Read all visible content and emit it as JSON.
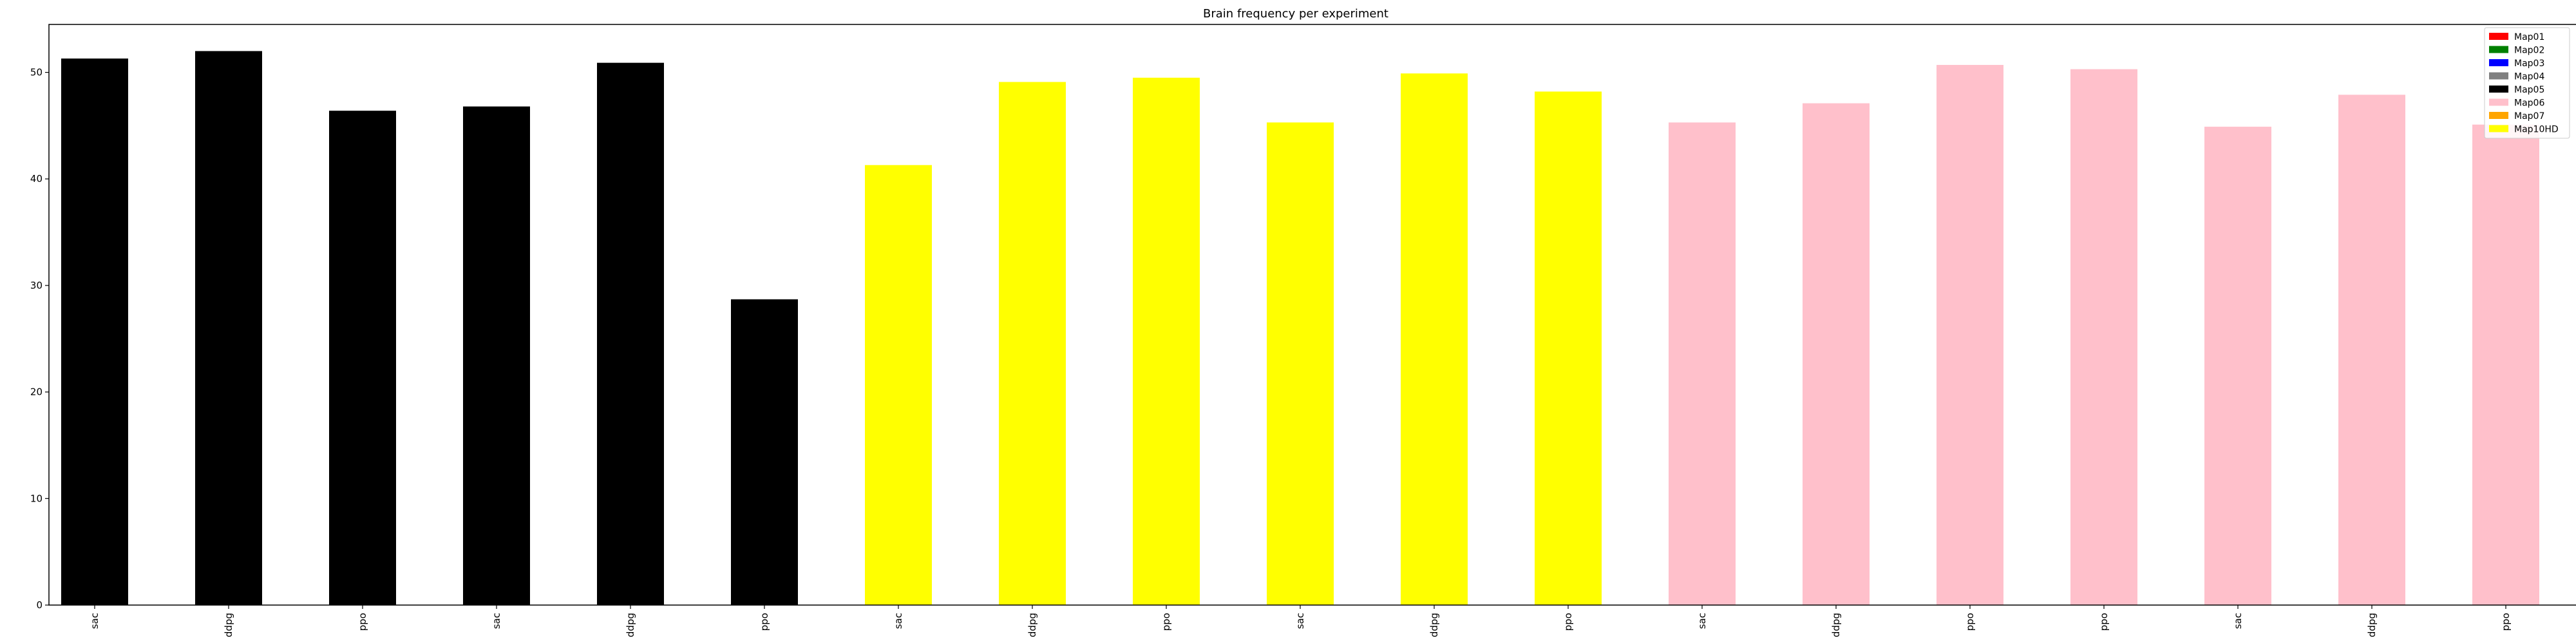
{
  "chart_data": {
    "type": "bar",
    "title": "Brain frequency per experiment",
    "xlabel": "",
    "ylabel": "",
    "ylim": [
      0,
      54.5
    ],
    "yticks": [
      0,
      10,
      20,
      30,
      40,
      50
    ],
    "grid": false,
    "legend_position": "top-right",
    "legend": [
      {
        "name": "Map01",
        "color": "#ff0000"
      },
      {
        "name": "Map02",
        "color": "#008000"
      },
      {
        "name": "Map03",
        "color": "#0000ff"
      },
      {
        "name": "Map04",
        "color": "#808080"
      },
      {
        "name": "Map05",
        "color": "#000000"
      },
      {
        "name": "Map06",
        "color": "#ffc0cb"
      },
      {
        "name": "Map07",
        "color": "#ffa500"
      },
      {
        "name": "Map10HD",
        "color": "#ffff00"
      }
    ],
    "categories": [
      "sac",
      "ddpg",
      "ppo",
      "sac",
      "ddpg",
      "ppo",
      "sac",
      "ddpg",
      "ppo",
      "sac",
      "ddpg",
      "ppo",
      "sac",
      "ddpg",
      "ppo",
      "ppo",
      "sac",
      "ddpg",
      "ppo"
    ],
    "values": [
      51.3,
      52.0,
      46.4,
      46.8,
      50.9,
      28.7,
      41.3,
      49.1,
      49.5,
      45.3,
      49.9,
      48.2,
      45.3,
      47.1,
      50.7,
      50.3,
      44.9,
      47.9,
      45.1
    ],
    "bar_colors": [
      "#000000",
      "#000000",
      "#000000",
      "#000000",
      "#000000",
      "#000000",
      "#ffff00",
      "#ffff00",
      "#ffff00",
      "#ffff00",
      "#ffff00",
      "#ffff00",
      "#ffc0cb",
      "#ffc0cb",
      "#ffc0cb",
      "#ffc0cb",
      "#ffc0cb",
      "#ffc0cb",
      "#ffc0cb"
    ]
  }
}
